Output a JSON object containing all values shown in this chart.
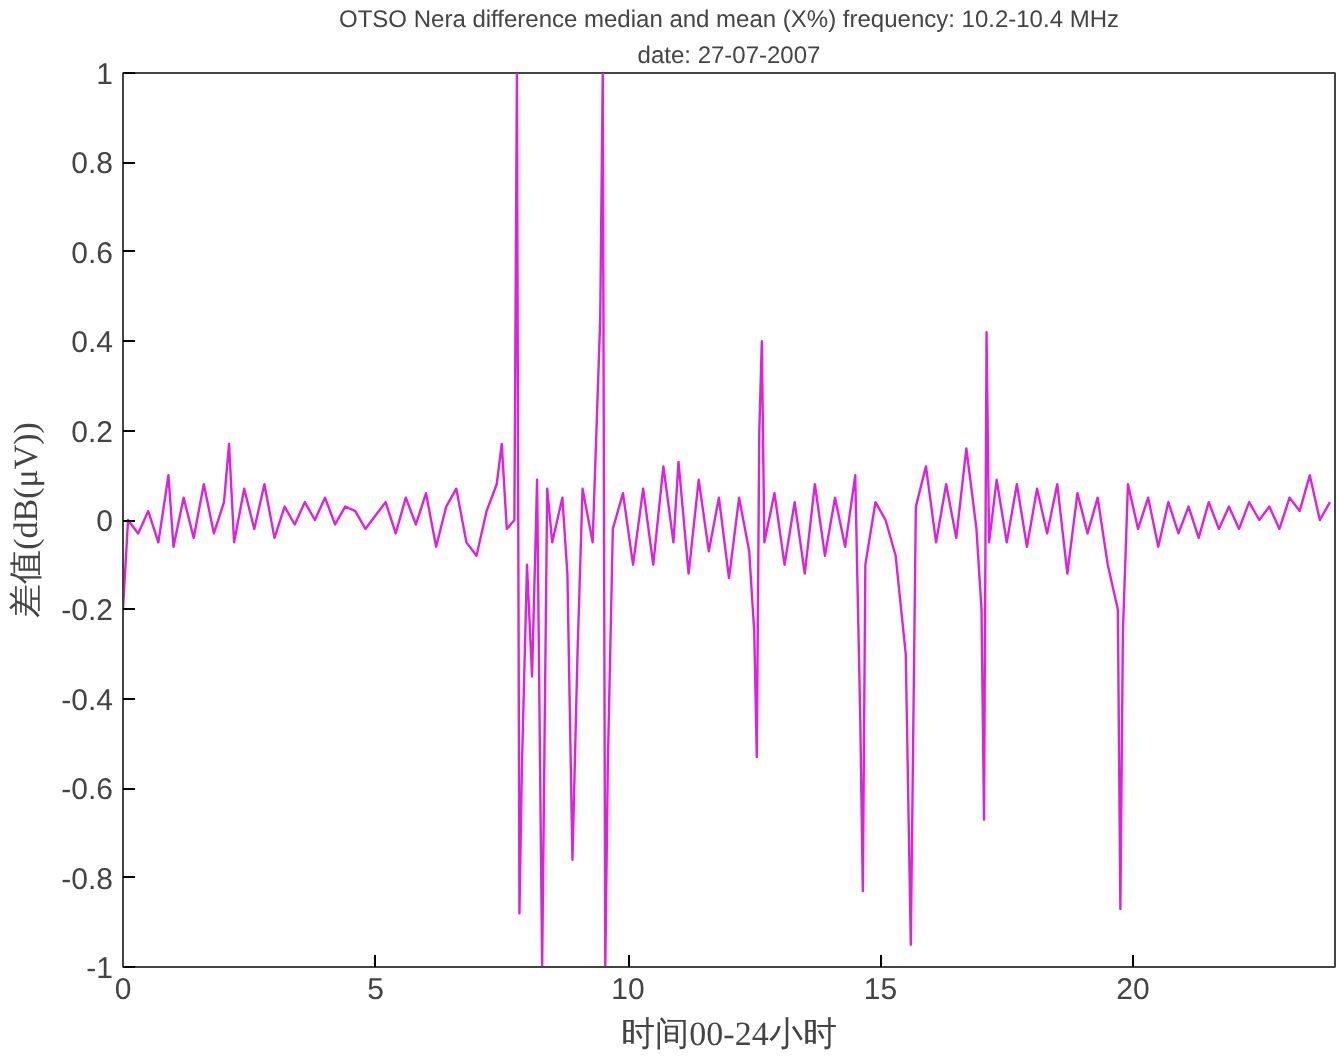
{
  "chart_data": {
    "type": "line",
    "title": "OTSO Nera difference median and mean (X%) frequency: 10.2-10.4 MHz",
    "subtitle": "date: 27-07-2007",
    "xlabel": "时间00-24小时",
    "ylabel": "差值(dB(μV))",
    "xlim": [
      0,
      24
    ],
    "ylim": [
      -1,
      1
    ],
    "xticks": [
      0,
      5,
      10,
      15,
      20
    ],
    "yticks": [
      -1,
      -0.8,
      -0.6,
      -0.4,
      -0.2,
      0,
      0.2,
      0.4,
      0.6,
      0.8,
      1
    ],
    "grid": false,
    "series": [
      {
        "color": "#e020e0",
        "x": [
          0,
          0.1,
          0.3,
          0.5,
          0.7,
          0.9,
          1.0,
          1.2,
          1.4,
          1.6,
          1.8,
          2.0,
          2.1,
          2.2,
          2.4,
          2.6,
          2.8,
          3.0,
          3.2,
          3.4,
          3.6,
          3.8,
          4.0,
          4.2,
          4.4,
          4.6,
          4.8,
          5.0,
          5.2,
          5.4,
          5.6,
          5.8,
          6.0,
          6.2,
          6.4,
          6.6,
          6.8,
          7.0,
          7.2,
          7.4,
          7.5,
          7.6,
          7.75,
          7.8,
          7.85,
          7.9,
          8.0,
          8.1,
          8.2,
          8.3,
          8.4,
          8.5,
          8.7,
          8.8,
          8.9,
          9.0,
          9.1,
          9.3,
          9.45,
          9.5,
          9.55,
          9.6,
          9.7,
          9.9,
          10.1,
          10.3,
          10.5,
          10.7,
          10.9,
          11.0,
          11.2,
          11.4,
          11.6,
          11.8,
          12.0,
          12.2,
          12.4,
          12.5,
          12.55,
          12.6,
          12.65,
          12.7,
          12.9,
          13.1,
          13.3,
          13.5,
          13.7,
          13.9,
          14.1,
          14.3,
          14.5,
          14.6,
          14.65,
          14.7,
          14.9,
          15.1,
          15.3,
          15.5,
          15.6,
          15.7,
          15.9,
          16.1,
          16.3,
          16.5,
          16.7,
          16.9,
          17.0,
          17.05,
          17.1,
          17.15,
          17.3,
          17.5,
          17.7,
          17.9,
          18.1,
          18.3,
          18.5,
          18.7,
          18.9,
          19.1,
          19.3,
          19.5,
          19.7,
          19.75,
          19.8,
          19.9,
          20.1,
          20.3,
          20.5,
          20.7,
          20.9,
          21.1,
          21.3,
          21.5,
          21.7,
          21.9,
          22.1,
          22.3,
          22.5,
          22.7,
          22.9,
          23.1,
          23.3,
          23.5,
          23.7,
          23.9
        ],
        "values": [
          -0.2,
          0.0,
          -0.03,
          0.02,
          -0.05,
          0.1,
          -0.06,
          0.05,
          -0.04,
          0.08,
          -0.03,
          0.04,
          0.17,
          -0.05,
          0.07,
          -0.02,
          0.08,
          -0.04,
          0.03,
          -0.01,
          0.04,
          0.0,
          0.05,
          -0.01,
          0.03,
          0.02,
          -0.02,
          0.01,
          0.04,
          -0.03,
          0.05,
          -0.01,
          0.06,
          -0.06,
          0.03,
          0.07,
          -0.05,
          -0.08,
          0.02,
          0.08,
          0.17,
          -0.02,
          0.0,
          1.0,
          -0.88,
          -0.55,
          -0.1,
          -0.35,
          0.09,
          -1.0,
          0.07,
          -0.05,
          0.05,
          -0.12,
          -0.76,
          -0.3,
          0.07,
          -0.05,
          0.45,
          1.0,
          -1.0,
          -0.55,
          -0.02,
          0.06,
          -0.1,
          0.07,
          -0.1,
          0.12,
          -0.05,
          0.13,
          -0.12,
          0.09,
          -0.07,
          0.05,
          -0.13,
          0.05,
          -0.07,
          -0.25,
          -0.53,
          0.2,
          0.4,
          -0.05,
          0.06,
          -0.1,
          0.04,
          -0.12,
          0.08,
          -0.08,
          0.05,
          -0.06,
          0.1,
          -0.45,
          -0.83,
          -0.1,
          0.04,
          0.0,
          -0.08,
          -0.3,
          -0.95,
          0.03,
          0.12,
          -0.05,
          0.08,
          -0.04,
          0.16,
          -0.02,
          -0.2,
          -0.67,
          0.42,
          -0.05,
          0.09,
          -0.05,
          0.08,
          -0.06,
          0.07,
          -0.03,
          0.08,
          -0.12,
          0.06,
          -0.03,
          0.05,
          -0.1,
          -0.2,
          -0.87,
          -0.25,
          0.08,
          -0.02,
          0.05,
          -0.06,
          0.04,
          -0.03,
          0.03,
          -0.04,
          0.04,
          -0.02,
          0.03,
          -0.02,
          0.04,
          0.0,
          0.03,
          -0.02,
          0.05,
          0.02,
          0.1,
          0.0,
          0.04
        ]
      }
    ]
  }
}
